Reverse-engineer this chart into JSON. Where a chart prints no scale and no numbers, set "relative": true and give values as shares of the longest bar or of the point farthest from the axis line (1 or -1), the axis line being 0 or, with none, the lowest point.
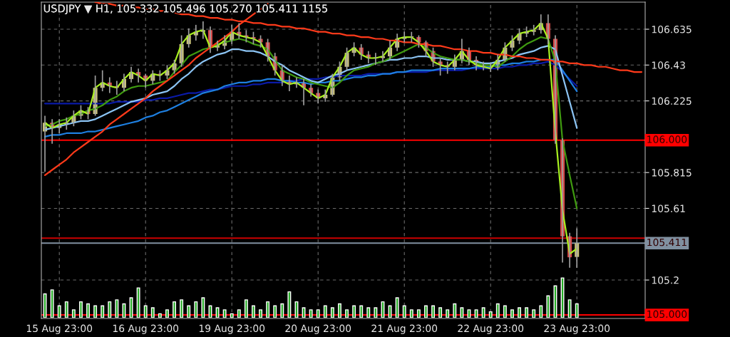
{
  "chart_data": [
    {
      "type": "candlestick",
      "title": "USDJPY ▼ H1, 105.332 105.496 105.270 105.411 1155",
      "categories": [
        null,
        null,
        "15 Aug 23:00",
        null,
        null,
        null,
        null,
        null,
        null,
        null,
        null,
        null,
        null,
        null,
        "16 Aug 23:00",
        null,
        null,
        null,
        null,
        null,
        null,
        null,
        null,
        null,
        null,
        null,
        "19 Aug 23:00",
        null,
        null,
        null,
        null,
        null,
        null,
        null,
        null,
        null,
        null,
        null,
        "20 Aug 23:00",
        null,
        null,
        null,
        null,
        null,
        null,
        null,
        null,
        null,
        null,
        null,
        "21 Aug 23:00",
        null,
        null,
        null,
        null,
        null,
        null,
        null,
        null,
        null,
        null,
        null,
        "22 Aug 23:00",
        null,
        null,
        null,
        null,
        null,
        null,
        null,
        null,
        null,
        null,
        null,
        "23 Aug 23:00",
        null,
        null,
        null,
        null,
        null,
        null,
        null,
        null,
        null
      ],
      "ohlc": [
        [
          106.05,
          106.14,
          105.82,
          106.1
        ],
        [
          106.1,
          106.12,
          105.98,
          106.07
        ],
        [
          106.07,
          106.12,
          106.04,
          106.09
        ],
        [
          106.09,
          106.13,
          106.06,
          106.1
        ],
        [
          106.1,
          106.17,
          106.08,
          106.14
        ],
        [
          106.14,
          106.2,
          106.12,
          106.17
        ],
        [
          106.17,
          106.19,
          106.12,
          106.15
        ],
        [
          106.15,
          106.37,
          106.14,
          106.3
        ],
        [
          106.3,
          106.4,
          106.28,
          106.33
        ],
        [
          106.33,
          106.36,
          106.27,
          106.31
        ],
        [
          106.31,
          106.34,
          106.26,
          106.3
        ],
        [
          106.3,
          106.38,
          106.28,
          106.35
        ],
        [
          106.35,
          106.42,
          106.33,
          106.39
        ],
        [
          106.39,
          106.41,
          106.33,
          106.37
        ],
        [
          106.37,
          106.38,
          106.3,
          106.34
        ],
        [
          106.34,
          106.4,
          106.32,
          106.38
        ],
        [
          106.38,
          106.4,
          106.34,
          106.37
        ],
        [
          106.37,
          106.43,
          106.35,
          106.4
        ],
        [
          106.4,
          106.46,
          106.38,
          106.44
        ],
        [
          106.44,
          106.6,
          106.42,
          106.55
        ],
        [
          106.55,
          106.64,
          106.53,
          106.6
        ],
        [
          106.6,
          106.66,
          106.57,
          106.62
        ],
        [
          106.62,
          106.68,
          106.58,
          106.63
        ],
        [
          106.63,
          106.65,
          106.5,
          106.53
        ],
        [
          106.53,
          106.57,
          106.51,
          106.54
        ],
        [
          106.54,
          106.6,
          106.52,
          106.57
        ],
        [
          106.57,
          106.66,
          106.55,
          106.62
        ],
        [
          106.62,
          106.67,
          106.58,
          106.6
        ],
        [
          106.6,
          106.63,
          106.56,
          106.59
        ],
        [
          106.59,
          106.62,
          106.55,
          106.58
        ],
        [
          106.58,
          106.6,
          106.53,
          106.56
        ],
        [
          106.56,
          106.58,
          106.45,
          106.48
        ],
        [
          106.48,
          106.5,
          106.37,
          106.4
        ],
        [
          106.4,
          106.43,
          106.31,
          106.34
        ],
        [
          106.34,
          106.37,
          106.28,
          106.32
        ],
        [
          106.32,
          106.36,
          106.3,
          106.33
        ],
        [
          106.33,
          106.35,
          106.2,
          106.3
        ],
        [
          106.3,
          106.32,
          106.25,
          106.27
        ],
        [
          106.27,
          106.29,
          106.21,
          106.24
        ],
        [
          106.24,
          106.29,
          106.22,
          106.26
        ],
        [
          106.26,
          106.38,
          106.25,
          106.36
        ],
        [
          106.36,
          106.45,
          106.34,
          106.42
        ],
        [
          106.42,
          106.53,
          106.4,
          106.5
        ],
        [
          106.5,
          106.56,
          106.48,
          106.53
        ],
        [
          106.53,
          106.55,
          106.46,
          106.49
        ],
        [
          106.49,
          106.51,
          106.44,
          106.47
        ],
        [
          106.47,
          106.5,
          106.43,
          106.47
        ],
        [
          106.47,
          106.51,
          106.45,
          106.48
        ],
        [
          106.48,
          106.57,
          106.46,
          106.53
        ],
        [
          106.53,
          106.61,
          106.51,
          106.58
        ],
        [
          106.58,
          106.62,
          106.56,
          106.59
        ],
        [
          106.59,
          106.62,
          106.56,
          106.59
        ],
        [
          106.59,
          106.6,
          106.53,
          106.56
        ],
        [
          106.56,
          106.57,
          106.48,
          106.51
        ],
        [
          106.51,
          106.53,
          106.42,
          106.45
        ],
        [
          106.45,
          106.47,
          106.37,
          106.43
        ],
        [
          106.43,
          106.45,
          106.38,
          106.42
        ],
        [
          106.42,
          106.49,
          106.4,
          106.46
        ],
        [
          106.46,
          106.58,
          106.44,
          106.51
        ],
        [
          106.51,
          106.53,
          106.43,
          106.46
        ],
        [
          106.46,
          106.48,
          106.4,
          106.43
        ],
        [
          106.43,
          106.45,
          106.4,
          106.42
        ],
        [
          106.42,
          106.44,
          106.39,
          106.41
        ],
        [
          106.41,
          106.49,
          106.4,
          106.46
        ],
        [
          106.46,
          106.56,
          106.45,
          106.53
        ],
        [
          106.53,
          106.6,
          106.51,
          106.57
        ],
        [
          106.57,
          106.64,
          106.55,
          106.61
        ],
        [
          106.61,
          106.65,
          106.59,
          106.62
        ],
        [
          106.62,
          106.66,
          106.6,
          106.63
        ],
        [
          106.63,
          106.72,
          106.61,
          106.67
        ],
        [
          106.67,
          106.72,
          106.55,
          106.58
        ],
        [
          106.58,
          106.6,
          105.98,
          106.0
        ],
        [
          106.0,
          106.01,
          105.3,
          105.45
        ],
        [
          105.45,
          105.47,
          105.27,
          105.33
        ],
        [
          105.332,
          105.496,
          105.27,
          105.411
        ],
        null,
        null,
        null,
        null,
        null,
        null,
        null,
        null,
        null
      ],
      "series": [
        {
          "type": "line",
          "color": "#0a1aa8",
          "values": [
            106.21,
            106.21,
            106.21,
            106.21,
            106.21,
            106.21,
            106.21,
            106.21,
            106.21,
            106.21,
            106.22,
            106.22,
            106.22,
            106.22,
            106.23,
            106.23,
            106.24,
            106.24,
            106.25,
            106.26,
            106.27,
            106.27,
            106.28,
            106.29,
            106.29,
            106.3,
            106.31,
            106.31,
            106.31,
            106.32,
            106.32,
            106.33,
            106.33,
            106.33,
            106.34,
            106.34,
            106.35,
            106.35,
            106.35,
            106.36,
            106.36,
            106.37,
            106.37,
            106.37,
            106.37,
            106.38,
            106.38,
            106.38,
            106.38,
            106.39,
            106.39,
            106.39,
            106.39,
            106.39,
            106.4,
            106.4,
            106.4,
            106.4,
            106.4,
            106.41,
            106.41,
            106.41,
            106.41,
            106.41,
            106.42,
            106.42,
            106.43,
            106.43,
            106.44,
            106.44,
            106.45,
            106.43,
            106.39,
            106.35,
            106.31,
            null,
            null,
            null,
            null,
            null,
            null,
            null,
            null,
            null
          ]
        },
        {
          "type": "line",
          "color": "#1e7fe0",
          "values": [
            106.02,
            106.03,
            106.03,
            106.04,
            106.04,
            106.04,
            106.05,
            106.05,
            106.06,
            106.07,
            106.08,
            106.09,
            106.1,
            106.11,
            106.13,
            106.14,
            106.16,
            106.17,
            106.19,
            106.21,
            106.23,
            106.25,
            106.27,
            106.28,
            106.29,
            106.31,
            106.32,
            106.33,
            106.33,
            106.34,
            106.34,
            106.35,
            106.35,
            106.34,
            106.34,
            106.33,
            106.33,
            106.32,
            106.33,
            106.33,
            106.34,
            106.34,
            106.35,
            106.36,
            106.36,
            106.37,
            106.37,
            106.38,
            106.38,
            106.39,
            106.39,
            106.4,
            106.4,
            106.4,
            106.4,
            106.41,
            106.41,
            106.41,
            106.41,
            106.41,
            106.42,
            106.42,
            106.42,
            106.43,
            106.43,
            106.44,
            106.44,
            106.45,
            106.45,
            106.46,
            106.46,
            106.46,
            106.4,
            106.34,
            106.28,
            null,
            null,
            null,
            null,
            null,
            null,
            null,
            null,
            null
          ]
        },
        {
          "type": "line",
          "color": "#8cc4f4",
          "values": [
            106.06,
            106.07,
            106.08,
            106.09,
            106.1,
            106.11,
            106.11,
            106.12,
            106.14,
            106.16,
            106.18,
            106.2,
            106.22,
            106.23,
            106.24,
            106.26,
            106.27,
            106.28,
            106.31,
            106.35,
            106.38,
            106.42,
            106.45,
            106.47,
            106.49,
            106.5,
            106.52,
            106.52,
            106.51,
            106.51,
            106.5,
            106.48,
            106.45,
            106.43,
            106.4,
            106.38,
            106.36,
            106.34,
            106.33,
            106.35,
            106.37,
            106.38,
            106.4,
            106.41,
            106.42,
            106.43,
            106.44,
            106.45,
            106.46,
            106.46,
            106.47,
            106.47,
            106.48,
            106.48,
            106.47,
            106.47,
            106.46,
            106.46,
            106.46,
            106.45,
            106.45,
            106.44,
            106.44,
            106.45,
            106.46,
            106.47,
            106.49,
            106.5,
            106.51,
            106.53,
            106.54,
            106.52,
            106.37,
            106.22,
            106.07,
            null,
            null,
            null,
            null,
            null,
            null,
            null,
            null,
            null
          ]
        },
        {
          "type": "line",
          "color": "#3f9a10",
          "values": [
            106.08,
            106.09,
            106.11,
            106.12,
            106.14,
            106.15,
            106.17,
            106.18,
            106.2,
            106.23,
            106.25,
            106.28,
            106.3,
            106.31,
            106.31,
            106.32,
            106.33,
            106.34,
            106.39,
            106.43,
            106.48,
            106.5,
            106.52,
            106.53,
            106.55,
            106.56,
            106.57,
            106.58,
            106.57,
            106.55,
            106.54,
            106.52,
            106.46,
            106.4,
            106.38,
            106.36,
            106.35,
            106.33,
            106.32,
            106.31,
            106.3,
            106.33,
            106.37,
            106.4,
            106.41,
            106.42,
            106.44,
            106.45,
            106.47,
            106.49,
            106.51,
            106.53,
            106.55,
            106.53,
            106.5,
            106.48,
            106.47,
            106.46,
            106.46,
            106.45,
            106.44,
            106.43,
            106.43,
            106.42,
            106.45,
            106.48,
            106.52,
            106.55,
            106.57,
            106.59,
            106.58,
            106.45,
            106.0,
            105.8,
            105.61,
            null,
            null,
            null,
            null,
            null,
            null,
            null,
            null,
            null
          ]
        },
        {
          "type": "line",
          "color": "#a8f020",
          "values": [
            106.1,
            106.07,
            106.09,
            106.1,
            106.14,
            106.17,
            106.15,
            106.3,
            106.33,
            106.31,
            106.3,
            106.35,
            106.39,
            106.37,
            106.34,
            106.38,
            106.37,
            106.4,
            106.44,
            106.55,
            106.6,
            106.62,
            106.63,
            106.53,
            106.54,
            106.57,
            106.62,
            106.6,
            106.59,
            106.58,
            106.56,
            106.48,
            106.4,
            106.34,
            106.32,
            106.33,
            106.3,
            106.27,
            106.24,
            106.26,
            106.36,
            106.42,
            106.5,
            106.53,
            106.49,
            106.47,
            106.47,
            106.48,
            106.53,
            106.58,
            106.59,
            106.59,
            106.56,
            106.51,
            106.45,
            106.43,
            106.42,
            106.46,
            106.51,
            106.46,
            106.43,
            106.42,
            106.41,
            106.46,
            106.53,
            106.57,
            106.61,
            106.62,
            106.63,
            106.67,
            106.58,
            106.05,
            105.6,
            105.35,
            105.38,
            null,
            null,
            null,
            null,
            null,
            null,
            null,
            null,
            null
          ]
        },
        {
          "type": "line",
          "color": "#ff3a1a",
          "values": [
            null,
            null,
            null,
            null,
            null,
            null,
            null,
            106.79,
            106.78,
            106.78,
            106.77,
            106.77,
            106.76,
            106.76,
            106.75,
            106.75,
            106.74,
            106.74,
            106.73,
            106.72,
            106.72,
            106.71,
            106.71,
            106.7,
            106.7,
            106.69,
            106.69,
            106.68,
            106.68,
            106.67,
            106.67,
            106.66,
            106.66,
            106.65,
            106.65,
            106.64,
            106.64,
            106.63,
            106.62,
            106.62,
            106.61,
            106.61,
            106.6,
            106.6,
            106.59,
            106.59,
            106.58,
            106.58,
            106.57,
            106.57,
            106.56,
            106.56,
            106.55,
            106.55,
            106.54,
            106.54,
            106.53,
            106.52,
            106.52,
            106.51,
            106.51,
            106.5,
            106.5,
            106.49,
            106.49,
            106.48,
            106.48,
            106.47,
            106.47,
            106.46,
            106.46,
            106.45,
            106.45,
            106.44,
            106.44,
            106.43,
            106.43,
            106.42,
            106.42,
            106.41,
            106.4,
            106.4,
            106.39,
            106.39
          ]
        },
        {
          "type": "line",
          "color": "#ff3a1a",
          "values": [
            105.8,
            105.83,
            105.86,
            105.89,
            105.93,
            105.96,
            105.99,
            106.02,
            106.05,
            106.09,
            106.12,
            106.15,
            106.18,
            106.21,
            106.24,
            106.28,
            106.31,
            106.34,
            106.37,
            106.4,
            106.43,
            106.47,
            106.5,
            106.53,
            106.56,
            106.59,
            106.62,
            106.66,
            106.69,
            106.72,
            106.75,
            106.78,
            null,
            null,
            null,
            null,
            null,
            null,
            null,
            null,
            null,
            null,
            null,
            null,
            null,
            null,
            null,
            null,
            null,
            null,
            null,
            null,
            null,
            null,
            null,
            null,
            null,
            null,
            null,
            null,
            null,
            null,
            null,
            null,
            null,
            null,
            null,
            null,
            null,
            null,
            null,
            null,
            null,
            null,
            null,
            null,
            null,
            null,
            null,
            null,
            null,
            null,
            null,
            null
          ]
        }
      ],
      "ref_lines": [
        {
          "axis": "y",
          "value": 106.0,
          "label": "106.000",
          "color": "#ff0000"
        },
        {
          "axis": "y",
          "value": 105.44,
          "color": "#cc0000"
        },
        {
          "axis": "y",
          "value": 105.411,
          "label": "105.411",
          "color": "#8090a0"
        },
        {
          "axis": "y",
          "value": 105.0,
          "label": "105.000",
          "color": "#ff0000"
        }
      ],
      "ylim": [
        104.98,
        106.79
      ],
      "yticks": [
        105.2,
        105.61,
        105.815,
        106.225,
        106.43,
        106.635
      ],
      "grid": true
    },
    {
      "type": "bar",
      "relative": true,
      "color": "#22aa22",
      "categories": [
        null,
        null,
        null,
        null,
        null,
        null,
        null,
        null,
        null,
        null,
        null,
        null,
        null,
        null,
        null,
        null,
        null,
        null,
        null,
        null,
        null,
        null,
        null,
        null,
        null,
        null,
        null,
        null,
        null,
        null,
        null,
        null,
        null,
        null,
        null,
        null,
        null,
        null,
        null,
        null,
        null,
        null,
        null,
        null,
        null,
        null,
        null,
        null,
        null,
        null,
        null,
        null,
        null,
        null,
        null,
        null,
        null,
        null,
        null,
        null,
        null,
        null,
        null,
        null,
        null,
        null,
        null,
        null,
        null,
        null,
        null,
        null,
        null,
        null,
        null,
        null,
        null,
        null,
        null,
        null,
        null,
        null,
        null,
        null
      ],
      "values": [
        0.6,
        0.7,
        0.3,
        0.4,
        0.2,
        0.4,
        0.35,
        0.3,
        0.3,
        0.4,
        0.45,
        0.35,
        0.5,
        0.75,
        0.3,
        0.25,
        0.1,
        0.2,
        0.4,
        0.45,
        0.3,
        0.4,
        0.5,
        0.3,
        0.25,
        0.2,
        0.1,
        0.2,
        0.45,
        0.3,
        0.2,
        0.4,
        0.3,
        0.35,
        0.65,
        0.4,
        0.25,
        0.2,
        0.2,
        0.3,
        0.25,
        0.35,
        0.2,
        0.3,
        0.3,
        0.25,
        0.25,
        0.4,
        0.3,
        0.5,
        0.3,
        0.2,
        0.2,
        0.3,
        0.3,
        0.25,
        0.2,
        0.35,
        0.25,
        0.2,
        0.2,
        0.25,
        0.15,
        0.35,
        0.3,
        0.2,
        0.25,
        0.25,
        0.2,
        0.3,
        0.55,
        0.8,
        1.0,
        0.45,
        0.35,
        null,
        null,
        null,
        null,
        null,
        null,
        null,
        null,
        null
      ]
    }
  ]
}
